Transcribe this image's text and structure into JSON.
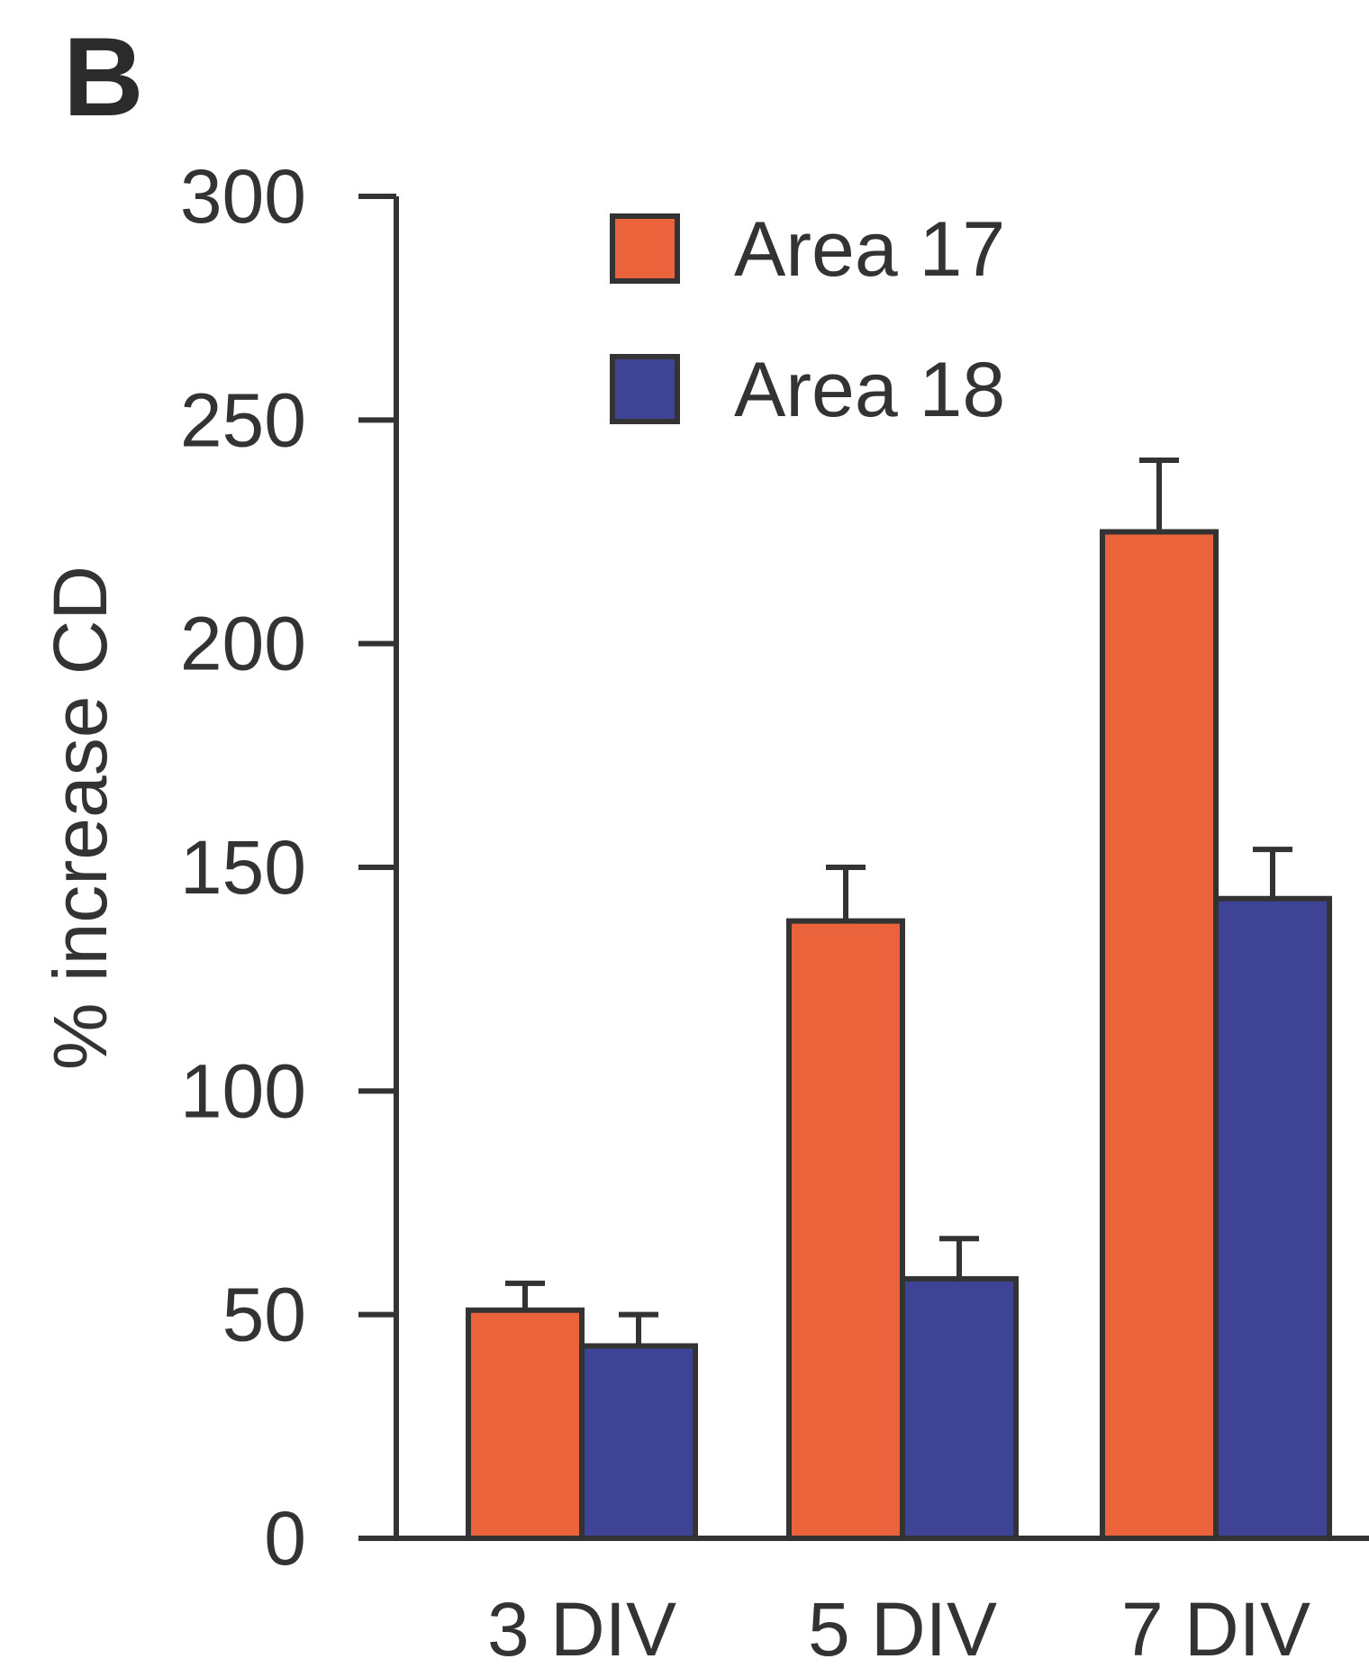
{
  "panel_label": "B",
  "colors": {
    "area17": "#EB633A",
    "area18": "#3F4395",
    "stroke": "#333333"
  },
  "chart_data": {
    "type": "bar",
    "title": "",
    "xlabel": "",
    "ylabel": "% increase CD",
    "ylim": [
      0,
      300
    ],
    "yticks": [
      0,
      50,
      100,
      150,
      200,
      250,
      300
    ],
    "categories": [
      "3 DIV",
      "5 DIV",
      "7 DIV"
    ],
    "series": [
      {
        "name": "Area 17",
        "values": [
          51,
          138,
          225
        ],
        "errors": [
          6,
          12,
          16
        ]
      },
      {
        "name": "Area 18",
        "values": [
          43,
          58,
          143
        ],
        "errors": [
          7,
          9,
          11
        ]
      }
    ],
    "legend": {
      "position": "top-center"
    },
    "error_bars": true,
    "grid": false
  }
}
